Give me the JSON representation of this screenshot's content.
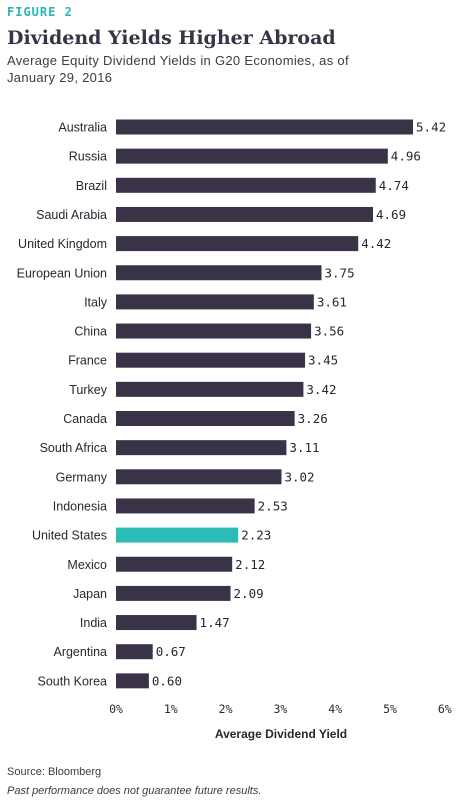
{
  "figure_label": "FIGURE 2",
  "title": "Dividend Yields Higher Abroad",
  "subtitle": "Average Equity Dividend Yields in G20 Economies, as of January 29, 2016",
  "source": "Source: Bloomberg",
  "disclaimer": "Past performance does not guarantee future results.",
  "colors": {
    "bar": "#3a3347",
    "highlight": "#2cbcb6",
    "text": "#2a2633"
  },
  "chart_data": {
    "type": "bar",
    "orientation": "horizontal",
    "categories": [
      "Australia",
      "Russia",
      "Brazil",
      "Saudi Arabia",
      "United Kingdom",
      "European Union",
      "Italy",
      "China",
      "France",
      "Turkey",
      "Canada",
      "South Africa",
      "Germany",
      "Indonesia",
      "United States",
      "Mexico",
      "Japan",
      "India",
      "Argentina",
      "South Korea"
    ],
    "values": [
      5.42,
      4.96,
      4.74,
      4.69,
      4.42,
      3.75,
      3.61,
      3.56,
      3.45,
      3.42,
      3.26,
      3.11,
      3.02,
      2.53,
      2.23,
      2.12,
      2.09,
      1.47,
      0.67,
      0.6
    ],
    "value_labels": [
      "5.42",
      "4.96",
      "4.74",
      "4.69",
      "4.42",
      "3.75",
      "3.61",
      "3.56",
      "3.45",
      "3.42",
      "3.26",
      "3.11",
      "3.02",
      "2.53",
      "2.23",
      "2.12",
      "2.09",
      "1.47",
      "0.67",
      "0.60"
    ],
    "highlight": "United States",
    "xlabel": "Average Dividend Yield",
    "xlim": [
      0,
      6
    ],
    "xticks": [
      0,
      1,
      2,
      3,
      4,
      5,
      6
    ],
    "xtick_labels": [
      "0%",
      "1%",
      "2%",
      "3%",
      "4%",
      "5%",
      "6%"
    ],
    "grid": false,
    "legend": "none"
  }
}
